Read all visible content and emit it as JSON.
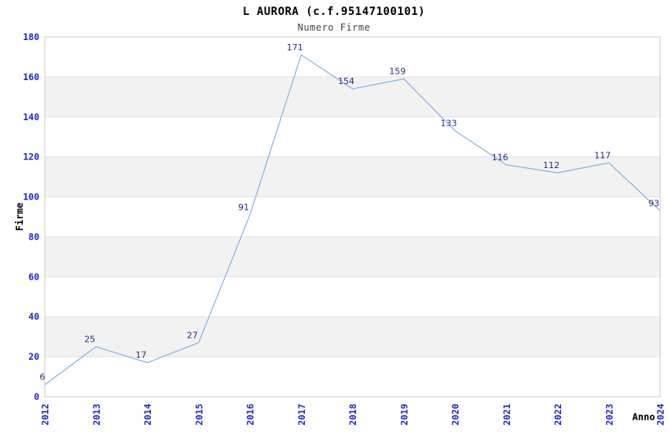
{
  "chart_data": {
    "type": "line",
    "title": "L AURORA (c.f.95147100101)",
    "subtitle": "Numero Firme",
    "xlabel": "Anno",
    "ylabel": "Firme",
    "categories": [
      "2012",
      "2013",
      "2014",
      "2015",
      "2016",
      "2017",
      "2018",
      "2019",
      "2020",
      "2021",
      "2022",
      "2023",
      "2024"
    ],
    "series": [
      {
        "name": "Numero Firme",
        "values": [
          6,
          25,
          17,
          27,
          91,
          171,
          154,
          159,
          133,
          116,
          112,
          117,
          93
        ]
      }
    ],
    "point_labels": [
      "6",
      "25",
      "17",
      "27",
      "91",
      "171",
      "154",
      "159",
      "133",
      "116",
      "112",
      "117",
      "93"
    ],
    "ylim": [
      0,
      180
    ],
    "ytick_step": 20,
    "yticks": [
      0,
      20,
      40,
      60,
      80,
      100,
      120,
      140,
      160,
      180
    ],
    "grid": true,
    "legend_position": "none",
    "band_style": "alternating-horizontal",
    "colors": {
      "line": "#7FB0E3",
      "tick_label": "#2222CC",
      "point_label": "#2B2B80",
      "band_alt": "#F2F2F2",
      "band_base": "#FFFFFF",
      "gridline": "#DFDFDF",
      "border": "#C9C9C9",
      "title": "#000000",
      "subtitle": "#444444",
      "axis_title": "#000000",
      "background": "#FFFFFF"
    }
  }
}
